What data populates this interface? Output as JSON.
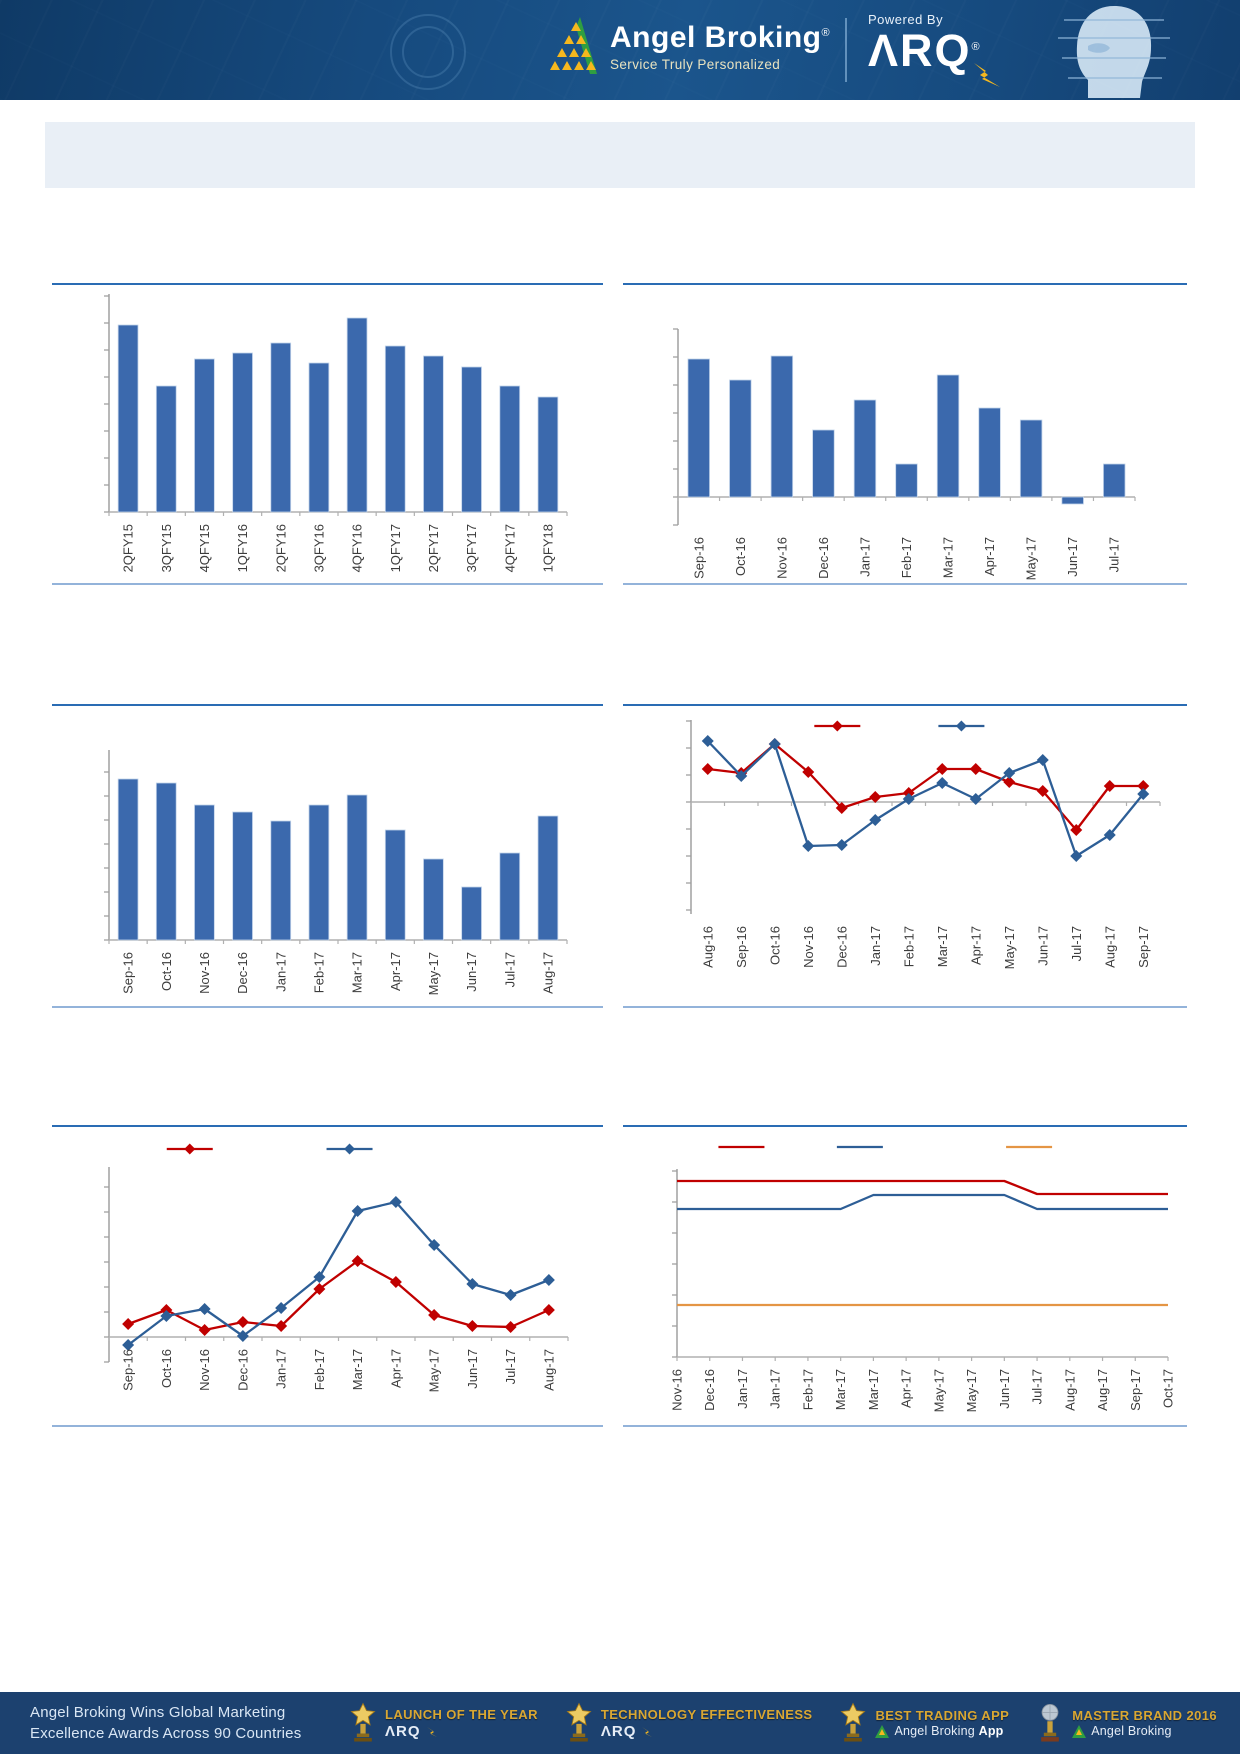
{
  "header": {
    "brand": "Angel Broking",
    "brand_reg": "®",
    "tagline": "Service Truly Personalized",
    "powered_by": "Powered By",
    "product": "ΛRQ",
    "product_reg": "®"
  },
  "title_box": {
    "text": ""
  },
  "colors": {
    "bar_blue": "#3b69ad",
    "line_red": "#c00000",
    "line_blue": "#2d5e96",
    "line_orange": "#e49544",
    "rule_blue": "#2a6cb4",
    "rule_light": "#93b3da",
    "header_navy": "#164a7e",
    "footer_navy": "#1c416f",
    "award_gold": "#d9a733"
  },
  "chart_data": [
    {
      "id": "quarterly-bar",
      "type": "bar",
      "title": "",
      "xlabel": "",
      "ylabel": "",
      "categories": [
        "2QFY15",
        "3QFY15",
        "4QFY15",
        "1QFY16",
        "2QFY16",
        "3QFY16",
        "4QFY16",
        "1QFY17",
        "2QFY17",
        "3QFY17",
        "4QFY17",
        "1QFY18"
      ],
      "values": [
        187,
        126,
        153,
        159,
        169,
        149,
        194,
        166,
        156,
        145,
        126,
        115
      ],
      "ylim": [
        0,
        218
      ],
      "ytick": 27,
      "labels_at": "bottom",
      "bar_color": "#3b69ad"
    },
    {
      "id": "monthly-bar-1",
      "type": "bar",
      "title": "",
      "xlabel": "",
      "ylabel": "",
      "categories": [
        "Sep-16",
        "Oct-16",
        "Nov-16",
        "Dec-16",
        "Jan-17",
        "Feb-17",
        "Mar-17",
        "Apr-17",
        "May-17",
        "Jun-17",
        "Jul-17"
      ],
      "values": [
        138,
        117,
        141,
        67,
        97,
        33,
        122,
        89,
        77,
        -7,
        33
      ],
      "ylim": [
        -28,
        168
      ],
      "ytick": 28,
      "labels_at": "bottom",
      "bar_color": "#3b69ad"
    },
    {
      "id": "monthly-bar-2",
      "type": "bar",
      "title": "",
      "xlabel": "",
      "ylabel": "",
      "categories": [
        "Sep-16",
        "Oct-16",
        "Nov-16",
        "Dec-16",
        "Jan-17",
        "Feb-17",
        "Mar-17",
        "Apr-17",
        "May-17",
        "Jun-17",
        "Jul-17",
        "Aug-17"
      ],
      "values": [
        161,
        157,
        135,
        128,
        119,
        135,
        145,
        110,
        81,
        53,
        87,
        124
      ],
      "ylim": [
        0,
        190
      ],
      "ytick": 24,
      "labels_at": "bottom",
      "bar_color": "#3b69ad"
    },
    {
      "id": "dual-line-1",
      "type": "line",
      "title": "",
      "xlabel": "",
      "ylabel": "",
      "categories": [
        "Aug-16",
        "Sep-16",
        "Oct-16",
        "Nov-16",
        "Dec-16",
        "Jan-17",
        "Feb-17",
        "Mar-17",
        "Apr-17",
        "May-17",
        "Jun-17",
        "Jul-17",
        "Aug-17",
        "Sep-17"
      ],
      "series": [
        {
          "name": "red-series",
          "color": "#c00000",
          "markers": true,
          "values": [
            33,
            29,
            58,
            30,
            -6,
            5,
            9,
            33,
            33,
            20,
            11,
            -28,
            16,
            16
          ]
        },
        {
          "name": "blue-series",
          "color": "#2d5e96",
          "markers": true,
          "values": [
            61,
            26,
            58,
            -44,
            -43,
            -18,
            3,
            19,
            3,
            29,
            42,
            -54,
            -33,
            8
          ]
        }
      ],
      "ylim": [
        -112,
        82
      ],
      "ytick": 27,
      "labels_at": "bottom",
      "legend": [
        {
          "color": "#c00000",
          "pos": 0.38,
          "marker": true,
          "label": ""
        },
        {
          "color": "#2d5e96",
          "pos": 0.6,
          "marker": true,
          "label": ""
        }
      ]
    },
    {
      "id": "dual-line-2",
      "type": "line",
      "title": "",
      "xlabel": "",
      "ylabel": "",
      "categories": [
        "Sep-16",
        "Oct-16",
        "Nov-16",
        "Dec-16",
        "Jan-17",
        "Feb-17",
        "Mar-17",
        "Apr-17",
        "May-17",
        "Jun-17",
        "Jul-17",
        "Aug-17"
      ],
      "series": [
        {
          "name": "red-series",
          "color": "#c00000",
          "markers": true,
          "values": [
            13,
            27,
            7,
            15,
            11,
            48,
            76,
            55,
            22,
            11,
            10,
            27
          ]
        },
        {
          "name": "blue-series",
          "color": "#2d5e96",
          "markers": true,
          "values": [
            -8,
            21,
            28,
            1,
            29,
            60,
            126,
            135,
            92,
            53,
            42,
            57
          ]
        }
      ],
      "ylim": [
        -25,
        170
      ],
      "ytick": 25,
      "labels_at": "zero",
      "legend": [
        {
          "color": "#c00000",
          "pos": 0.25,
          "marker": true,
          "label": ""
        },
        {
          "color": "#2d5e96",
          "pos": 0.54,
          "marker": true,
          "label": ""
        }
      ]
    },
    {
      "id": "triple-line-flat",
      "type": "line",
      "title": "",
      "xlabel": "",
      "ylabel": "",
      "categories": [
        "Nov-16",
        "Dec-16",
        "Jan-17",
        "Jan-17",
        "Feb-17",
        "Mar-17",
        "Mar-17",
        "Apr-17",
        "May-17",
        "May-17",
        "Jun-17",
        "Jul-17",
        "Aug-17",
        "Aug-17",
        "Sep-17",
        "Oct-17"
      ],
      "series": [
        {
          "name": "red-series",
          "color": "#c00000",
          "markers": false,
          "values": [
            176,
            176,
            176,
            176,
            176,
            176,
            176,
            176,
            176,
            176,
            176,
            163,
            163,
            163,
            163,
            163
          ]
        },
        {
          "name": "blue-series",
          "color": "#2d5e96",
          "markers": false,
          "values": [
            148,
            148,
            148,
            148,
            148,
            148,
            162,
            162,
            162,
            162,
            162,
            148,
            148,
            148,
            148,
            148
          ]
        },
        {
          "name": "orange-series",
          "color": "#e49544",
          "markers": false,
          "values": [
            52,
            52,
            52,
            52,
            52,
            52,
            52,
            52,
            52,
            52,
            52,
            52,
            52,
            52,
            52,
            52
          ]
        }
      ],
      "ylim": [
        0,
        188
      ],
      "ytick": 31,
      "labels_at": "bottom",
      "edge_to_edge": true,
      "legend": [
        {
          "color": "#c00000",
          "pos": 0.21,
          "marker": false,
          "label": ""
        },
        {
          "color": "#2d5e96",
          "pos": 0.42,
          "marker": false,
          "label": ""
        },
        {
          "color": "#e49544",
          "pos": 0.72,
          "marker": false,
          "label": ""
        }
      ]
    }
  ],
  "footer": {
    "message_line1": "Angel Broking Wins Global Marketing",
    "message_line2": "Excellence Awards Across 90 Countries",
    "awards": [
      {
        "title": "LAUNCH OF THE YEAR",
        "subtitle": "ΛRQ",
        "icon": "star-trophy"
      },
      {
        "title": "TECHNOLOGY EFFECTIVENESS",
        "subtitle": "ΛRQ",
        "icon": "star-trophy"
      },
      {
        "title": "BEST TRADING APP",
        "subtitle": "Angel Broking",
        "subtitle_bold": "App",
        "icon": "star-trophy"
      },
      {
        "title": "MASTER BRAND 2016",
        "subtitle": "Angel Broking",
        "subtitle_bold": "",
        "icon": "globe-trophy"
      }
    ]
  }
}
